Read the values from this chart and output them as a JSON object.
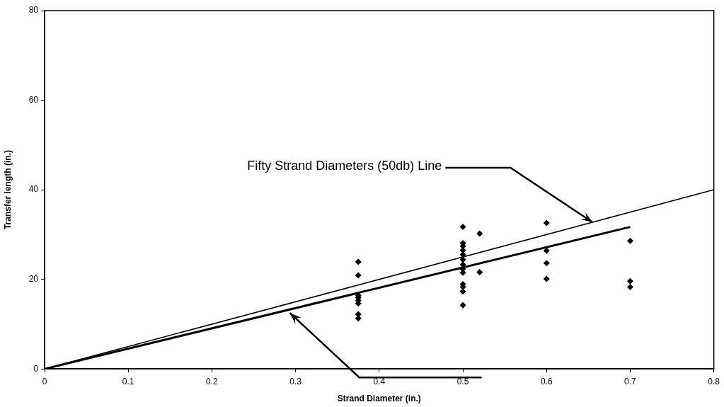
{
  "chart_data": {
    "type": "scatter",
    "xlabel": "Strand Diameter (in.)",
    "ylabel": "Transfer length (in.)",
    "xlim": [
      0,
      0.8
    ],
    "xticks": [
      0,
      0.1,
      0.2,
      0.3,
      0.4,
      0.5,
      0.6,
      0.7,
      0.8
    ],
    "ylim": [
      0,
      80
    ],
    "yticks": [
      0,
      20,
      40,
      60,
      80
    ],
    "grid": false,
    "legend": false,
    "marker": "diamond",
    "series": [
      {
        "color": "#000000",
        "x": [
          0.375,
          0.375,
          0.375,
          0.375,
          0.375,
          0.375,
          0.375,
          0.375,
          0.5,
          0.5,
          0.5,
          0.5,
          0.5,
          0.5,
          0.5,
          0.5,
          0.5,
          0.5,
          0.5,
          0.5,
          0.5,
          0.52,
          0.52,
          0.6,
          0.6,
          0.6,
          0.6,
          0.7,
          0.7,
          0.7
        ],
        "values": [
          23.9,
          20.9,
          16.4,
          15.9,
          15.3,
          14.6,
          12.2,
          11.3,
          31.7,
          28.1,
          27.4,
          26.5,
          25.5,
          24.4,
          23.3,
          22.3,
          21.5,
          18.9,
          18.3,
          17.3,
          14.2,
          30.2,
          21.6,
          32.6,
          26.4,
          23.6,
          20.1,
          28.6,
          19.6,
          18.3
        ]
      },
      {
        "type": "line",
        "color": "#000000",
        "marker": "none",
        "x": [
          0,
          0.8
        ],
        "values": [
          0,
          40
        ]
      },
      {
        "type": "line",
        "color": "#000000",
        "marker": "none",
        "x": [
          0,
          0.7
        ],
        "values": [
          0,
          31.7
        ]
      }
    ],
    "annotations": [
      {
        "text": "Fifty Strand Diameters (50db) Line",
        "x": 0.655,
        "y": 32.75
      }
    ]
  }
}
